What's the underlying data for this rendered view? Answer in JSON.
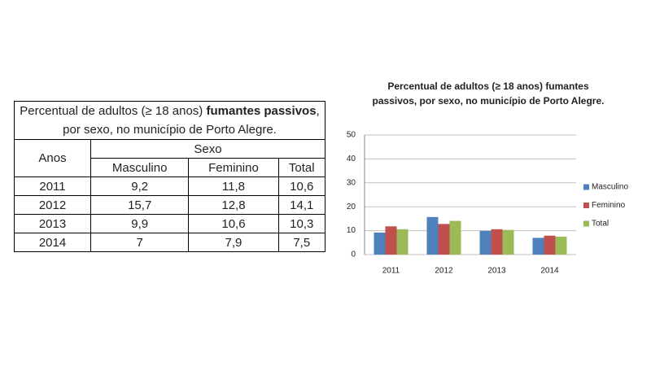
{
  "table": {
    "title_parts": [
      "Percentual de adultos (≥ 18 anos) ",
      "fumantes passivos",
      ", por sexo, no município de Porto Alegre."
    ],
    "header": {
      "years": "Anos",
      "group": "Sexo",
      "columns": [
        "Masculino",
        "Feminino",
        "Total"
      ]
    },
    "rows": [
      [
        "2011",
        "9,2",
        "11,8",
        "10,6"
      ],
      [
        "2012",
        "15,7",
        "12,8",
        "14,1"
      ],
      [
        "2013",
        "9,9",
        "10,6",
        "10,3"
      ],
      [
        "2014",
        "7",
        "7,9",
        "7,5"
      ]
    ]
  },
  "chart_data": {
    "type": "bar",
    "title": "Percentual de adultos (≥ 18 anos) fumantes passivos, por sexo, no município de Porto Alegre.",
    "categories": [
      "2011",
      "2012",
      "2013",
      "2014"
    ],
    "series": [
      {
        "name": "Masculino",
        "color": "#4f81bd",
        "values": [
          9.2,
          15.7,
          9.9,
          7
        ]
      },
      {
        "name": "Feminino",
        "color": "#c0504d",
        "values": [
          11.8,
          12.8,
          10.6,
          7.9
        ]
      },
      {
        "name": "Total",
        "color": "#9bbb59",
        "values": [
          10.6,
          14.1,
          10.3,
          7.5
        ]
      }
    ],
    "ylim": [
      0,
      50
    ],
    "yticks": [
      0,
      10,
      20,
      30,
      40,
      50
    ],
    "grid": true,
    "legend": "right"
  }
}
